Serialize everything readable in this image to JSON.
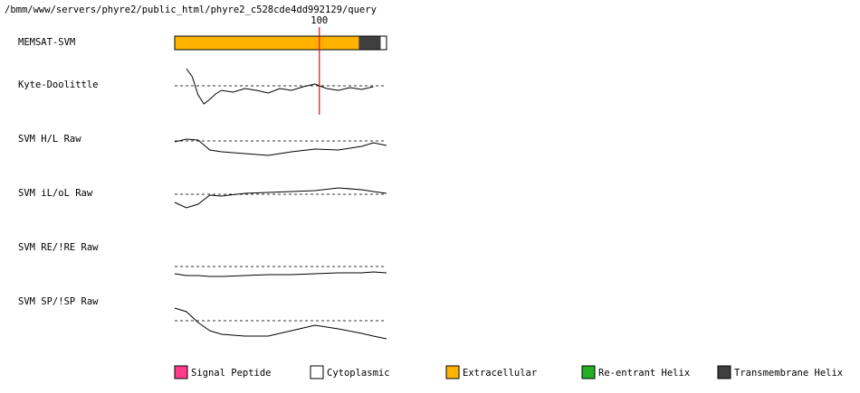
{
  "header": {
    "path": "/bmm/www/servers/phyre2/public_html/phyre2_c528cde4dd992129/query"
  },
  "chart_data": {
    "type": "track",
    "xlim": [
      1,
      146
    ],
    "marker": {
      "value": 100,
      "label": "100",
      "color": "#ff0000"
    },
    "memsat": {
      "name": "MEMSAT-SVM",
      "segments": [
        {
          "start": 1,
          "end": 127,
          "color": "#ffb300"
        },
        {
          "start": 127,
          "end": 142,
          "color": "#3f3f3f"
        },
        {
          "start": 142,
          "end": 146,
          "color": "#ffffff"
        }
      ]
    },
    "ylim": [
      -2,
      2
    ],
    "tracks": [
      {
        "name": "Kyte-Doolittle",
        "x": [
          9,
          13,
          17,
          21,
          25,
          29,
          33,
          41,
          49,
          57,
          65,
          73,
          81,
          89,
          97,
          105,
          113,
          121,
          129,
          137
        ],
        "values": [
          0.95,
          0.5,
          -0.5,
          -1.0,
          -0.75,
          -0.45,
          -0.25,
          -0.35,
          -0.15,
          -0.25,
          -0.4,
          -0.15,
          -0.25,
          -0.05,
          0.1,
          -0.15,
          -0.25,
          -0.1,
          -0.2,
          -0.05
        ]
      },
      {
        "name": "SVM H/L Raw",
        "x": [
          1,
          9,
          17,
          25,
          33,
          49,
          65,
          81,
          97,
          113,
          129,
          137,
          146
        ],
        "values": [
          -0.05,
          0.1,
          0.05,
          -0.5,
          -0.6,
          -0.7,
          -0.8,
          -0.6,
          -0.45,
          -0.5,
          -0.3,
          -0.1,
          -0.25
        ]
      },
      {
        "name": "SVM iL/oL Raw",
        "x": [
          1,
          9,
          17,
          25,
          33,
          49,
          65,
          81,
          97,
          113,
          129,
          137,
          146
        ],
        "values": [
          -0.45,
          -0.75,
          -0.55,
          -0.05,
          -0.1,
          0.05,
          0.1,
          0.15,
          0.2,
          0.35,
          0.25,
          0.15,
          0.05
        ]
      },
      {
        "name": "SVM RE/!RE Raw",
        "x": [
          1,
          9,
          17,
          25,
          33,
          49,
          65,
          81,
          97,
          113,
          129,
          137,
          146
        ],
        "values": [
          -0.4,
          -0.5,
          -0.5,
          -0.55,
          -0.55,
          -0.5,
          -0.45,
          -0.45,
          -0.4,
          -0.35,
          -0.35,
          -0.3,
          -0.35
        ]
      },
      {
        "name": "SVM SP/!SP Raw",
        "x": [
          1,
          9,
          17,
          25,
          33,
          49,
          65,
          81,
          97,
          113,
          129,
          137,
          146
        ],
        "values": [
          0.7,
          0.5,
          -0.1,
          -0.55,
          -0.75,
          -0.85,
          -0.85,
          -0.55,
          -0.25,
          -0.45,
          -0.7,
          -0.85,
          -1.0
        ]
      }
    ],
    "legend": [
      {
        "name": "Signal Peptide",
        "color": "#ff3b8a"
      },
      {
        "name": "Cytoplasmic",
        "color": "#ffffff"
      },
      {
        "name": "Extracellular",
        "color": "#ffb300"
      },
      {
        "name": "Re-entrant Helix",
        "color": "#22b022"
      },
      {
        "name": "Transmembrane Helix",
        "color": "#3f3f3f"
      }
    ]
  }
}
